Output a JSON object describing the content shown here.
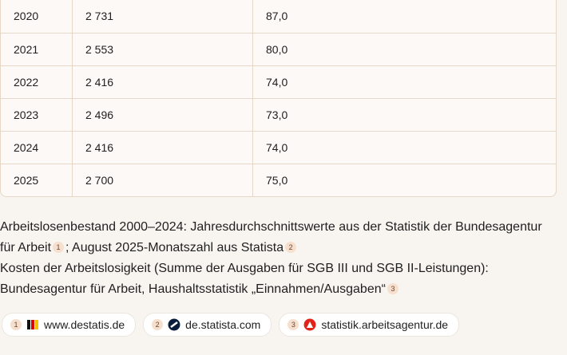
{
  "table": {
    "rows": [
      [
        "2020",
        "2 731",
        "87,0"
      ],
      [
        "2021",
        "2 553",
        "80,0"
      ],
      [
        "2022",
        "2 416",
        "74,0"
      ],
      [
        "2023",
        "2 496",
        "73,0"
      ],
      [
        "2024",
        "2 416",
        "74,0"
      ],
      [
        "2025",
        "2 700",
        "75,0"
      ]
    ]
  },
  "notes": {
    "line1": {
      "text_a": "Arbeitslosenbestand 2000–2024: Jahresdurchschnittswerte aus der Statistik der Bundesagentur für Arbeit",
      "cite_a": "1",
      "text_b": "; August 2025-Monatszahl aus Statista",
      "cite_b": "2"
    },
    "line2": {
      "text": "Kosten der Arbeitslosigkeit (Summe der Ausgaben für SGB III und SGB II-Leistungen): Bundesagentur für Arbeit, Haushaltsstatistik „Einnahmen/Ausgaben“",
      "cite": "3"
    }
  },
  "sources": [
    {
      "number": "1",
      "label": "www.destatis.de"
    },
    {
      "number": "2",
      "label": "de.statista.com"
    },
    {
      "number": "3",
      "label": "statistik.arbeitsagentur.de"
    }
  ]
}
